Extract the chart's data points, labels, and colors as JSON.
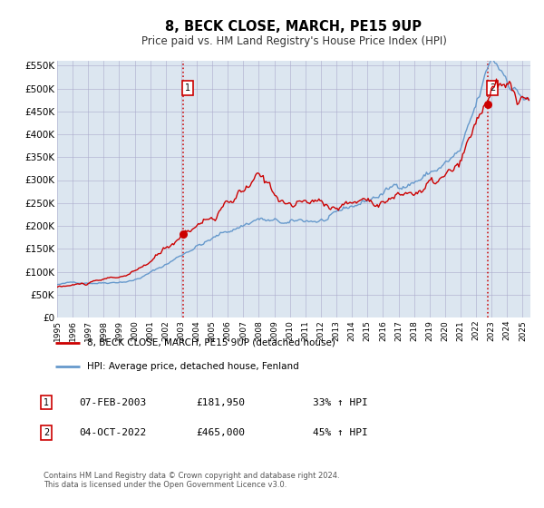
{
  "title": "8, BECK CLOSE, MARCH, PE15 9UP",
  "subtitle": "Price paid vs. HM Land Registry's House Price Index (HPI)",
  "hpi_label": "HPI: Average price, detached house, Fenland",
  "property_label": "8, BECK CLOSE, MARCH, PE15 9UP (detached house)",
  "sale1_date": "07-FEB-2003",
  "sale1_price": 181950,
  "sale1_hpi": "33% ↑ HPI",
  "sale2_date": "04-OCT-2022",
  "sale2_price": 465000,
  "sale2_hpi": "45% ↑ HPI",
  "sale1_date_num": 2003.1,
  "sale2_date_num": 2022.75,
  "ylim_max": 560000,
  "xlim_min": 1995.0,
  "xlim_max": 2025.5,
  "property_color": "#cc0000",
  "hpi_color": "#6699cc",
  "bg_color": "#dce6f0",
  "plot_bg": "#ffffff",
  "grid_color": "#aaaacc",
  "dashed_line_color": "#cc0000",
  "footer_text": "Contains HM Land Registry data © Crown copyright and database right 2024.\nThis data is licensed under the Open Government Licence v3.0.",
  "ytick_labels": [
    "£0",
    "£50K",
    "£100K",
    "£150K",
    "£200K",
    "£250K",
    "£300K",
    "£350K",
    "£400K",
    "£450K",
    "£500K",
    "£550K"
  ],
  "ytick_values": [
    0,
    50000,
    100000,
    150000,
    200000,
    250000,
    300000,
    350000,
    400000,
    450000,
    500000,
    550000
  ]
}
